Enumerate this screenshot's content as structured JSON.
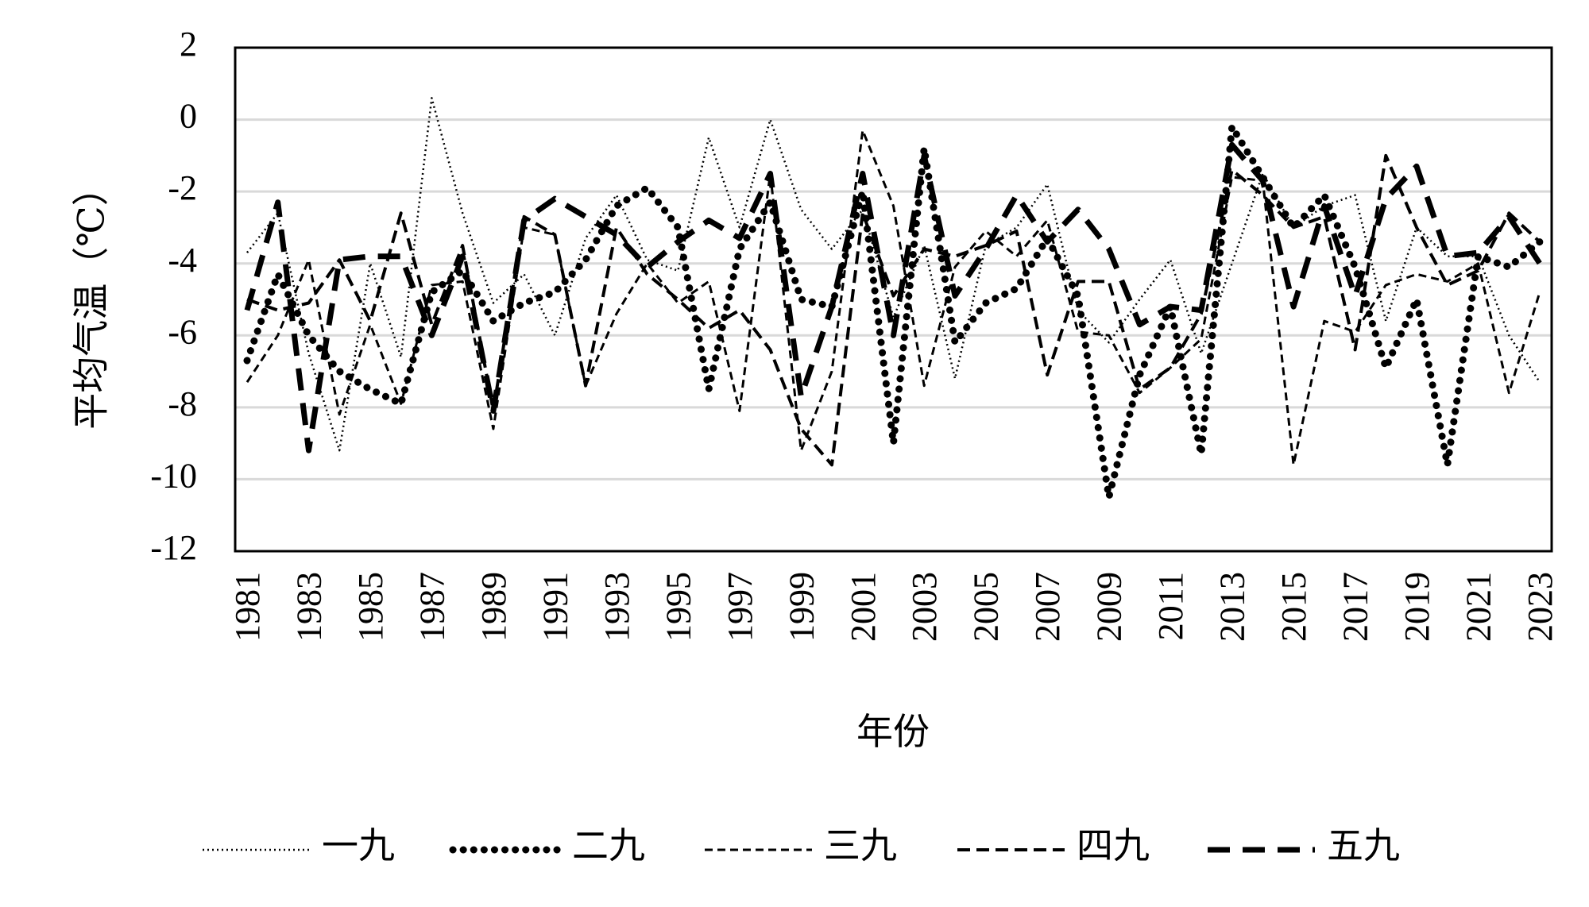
{
  "chart_data": {
    "type": "line",
    "title": "",
    "xlabel": "年份",
    "ylabel": "平均气温（℃）",
    "ylim": [
      -12,
      2
    ],
    "yticks": [
      2,
      0,
      -2,
      -4,
      -6,
      -8,
      -10,
      -12
    ],
    "grid": "horizontal",
    "legend_position": "bottom",
    "x": [
      1981,
      1982,
      1983,
      1984,
      1985,
      1986,
      1987,
      1988,
      1989,
      1990,
      1991,
      1992,
      1993,
      1994,
      1995,
      1996,
      1997,
      1998,
      1999,
      2000,
      2001,
      2002,
      2003,
      2004,
      2005,
      2006,
      2007,
      2008,
      2009,
      2010,
      2011,
      2012,
      2013,
      2014,
      2015,
      2016,
      2017,
      2018,
      2019,
      2020,
      2021,
      2022,
      2023
    ],
    "xticks": [
      "1981",
      "1983",
      "1985",
      "1987",
      "1989",
      "1991",
      "1993",
      "1995",
      "1997",
      "1999",
      "2001",
      "2003",
      "2005",
      "2007",
      "2009",
      "2011",
      "2013",
      "2015",
      "2017",
      "2019",
      "2021",
      "2023"
    ],
    "series": [
      {
        "name": "一九",
        "style": "dotted-fine",
        "values": [
          -3.7,
          -2.6,
          -6.5,
          -9.2,
          -4.0,
          -6.6,
          0.6,
          -2.6,
          -5.1,
          -4.3,
          -6.0,
          -3.3,
          -2.1,
          -3.9,
          -4.2,
          -0.5,
          -3.0,
          0.0,
          -2.5,
          -3.6,
          -2.5,
          -5.5,
          -3.5,
          -7.2,
          -3.5,
          -3.0,
          -1.8,
          -5.3,
          -6.2,
          -5.0,
          -3.9,
          -6.5,
          -4.0,
          -1.5,
          -3.0,
          -2.4,
          -2.1,
          -5.6,
          -3.0,
          -3.8,
          -3.8,
          -6.0,
          -7.3
        ]
      },
      {
        "name": "二九",
        "style": "dotted-heavy",
        "values": [
          -6.7,
          -4.3,
          -6.0,
          -7.0,
          -7.5,
          -7.9,
          -4.8,
          -4.2,
          -5.6,
          -5.1,
          -4.8,
          -3.9,
          -2.4,
          -1.9,
          -3.0,
          -7.5,
          -3.6,
          -2.3,
          -5.0,
          -5.2,
          -2.0,
          -9.0,
          -0.8,
          -6.2,
          -5.1,
          -4.7,
          -3.3,
          -4.9,
          -10.5,
          -7.1,
          -5.2,
          -9.3,
          -0.2,
          -1.6,
          -3.0,
          -2.1,
          -4.1,
          -6.9,
          -5.0,
          -9.6,
          -3.8,
          -4.1,
          -3.4
        ]
      },
      {
        "name": "三九",
        "style": "dashed-short",
        "values": [
          -7.3,
          -6.0,
          -3.9,
          -8.2,
          -5.7,
          -7.9,
          -4.6,
          -4.5,
          -8.6,
          -3.0,
          -3.2,
          -7.4,
          -5.4,
          -4.0,
          -5.1,
          -4.5,
          -8.1,
          -1.5,
          -9.2,
          -7.0,
          -0.3,
          -2.4,
          -7.4,
          -4.1,
          -3.1,
          -3.8,
          -2.8,
          -5.9,
          -6.0,
          -7.6,
          -6.9,
          -6.1,
          -1.6,
          -1.7,
          -9.6,
          -5.6,
          -5.9,
          -4.6,
          -4.3,
          -4.5,
          -4.0,
          -7.6,
          -4.8
        ]
      },
      {
        "name": "四九",
        "style": "dashed-medium",
        "values": [
          -5.0,
          -5.3,
          -5.1,
          -3.9,
          -5.6,
          -2.6,
          -5.7,
          -3.5,
          -8.1,
          -2.7,
          -3.2,
          -7.4,
          -3.0,
          -4.3,
          -5.0,
          -5.8,
          -5.3,
          -6.4,
          -8.6,
          -9.6,
          -2.6,
          -4.9,
          -3.6,
          -3.8,
          -3.5,
          -3.1,
          -7.1,
          -4.5,
          -4.5,
          -7.5,
          -6.9,
          -5.4,
          -1.4,
          -2.1,
          -3.0,
          -2.7,
          -6.4,
          -1.0,
          -3.0,
          -4.6,
          -4.2,
          -2.6,
          -3.4
        ]
      },
      {
        "name": "五九",
        "style": "dashed-heavy",
        "values": [
          -5.3,
          -2.3,
          -9.2,
          -3.9,
          -3.8,
          -3.8,
          -6.0,
          -3.8,
          -8.1,
          -2.8,
          -2.2,
          -2.7,
          -3.2,
          -4.1,
          -3.4,
          -2.8,
          -3.3,
          -1.5,
          -7.7,
          -5.2,
          -1.5,
          -6.0,
          -1.0,
          -4.9,
          -3.6,
          -2.1,
          -3.4,
          -2.5,
          -3.6,
          -5.7,
          -5.2,
          -5.3,
          -0.7,
          -1.7,
          -5.2,
          -2.4,
          -4.9,
          -2.2,
          -1.3,
          -3.8,
          -3.7,
          -2.7,
          -4.0
        ]
      }
    ]
  }
}
